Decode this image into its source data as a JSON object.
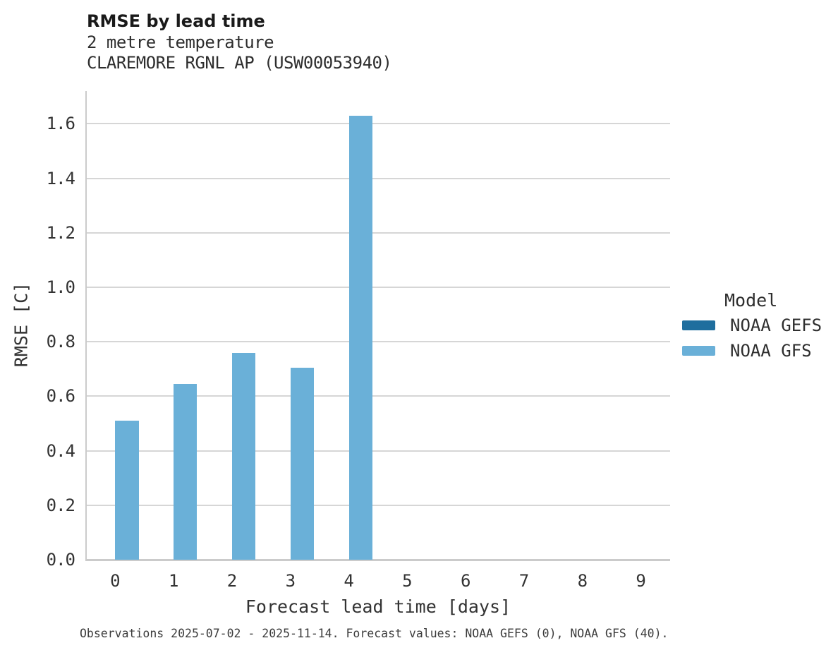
{
  "header": {
    "title": "RMSE by lead time",
    "subtitle_variable": "2 metre temperature",
    "subtitle_station": "CLAREMORE RGNL AP (USW00053940)"
  },
  "legend": {
    "title": "Model",
    "entries": [
      {
        "label": "NOAA GEFS",
        "color": "#1f6e9e"
      },
      {
        "label": "NOAA GFS",
        "color": "#6ab0d8"
      }
    ]
  },
  "footer": {
    "caption": "Observations 2025-07-02 - 2025-11-14. Forecast values: NOAA GEFS (0), NOAA GFS (40)."
  },
  "colors": {
    "noaa_gefs": "#1f6e9e",
    "noaa_gfs": "#6ab0d8",
    "gridline": "#d6d6d6",
    "axis_line": "#cbcbcb",
    "title_text": "#1a1a1a",
    "tick_text": "#333333",
    "caption_text": "#3c3c3c"
  },
  "chart_data": {
    "type": "bar",
    "title": "RMSE by lead time",
    "subtitle": [
      "2 metre temperature",
      "CLAREMORE RGNL AP (USW00053940)"
    ],
    "xlabel": "Forecast lead time [days]",
    "ylabel": "RMSE [C]",
    "categories": [
      0,
      1,
      2,
      3,
      4,
      5,
      6,
      7,
      8,
      9
    ],
    "series": [
      {
        "name": "NOAA GEFS",
        "color": "#1f6e9e",
        "values": [
          null,
          null,
          null,
          null,
          null,
          null,
          null,
          null,
          null,
          null
        ]
      },
      {
        "name": "NOAA GFS",
        "color": "#6ab0d8",
        "values": [
          0.51,
          0.645,
          0.76,
          0.705,
          1.63,
          null,
          null,
          null,
          null,
          null
        ]
      }
    ],
    "ylim": [
      0,
      1.72
    ],
    "yticks": [
      0.0,
      0.2,
      0.4,
      0.6,
      0.8,
      1.0,
      1.2,
      1.4,
      1.6
    ],
    "ytick_format_decimals": 1,
    "grid": "horizontal",
    "legend_position": "right",
    "legend_title": "Model"
  }
}
